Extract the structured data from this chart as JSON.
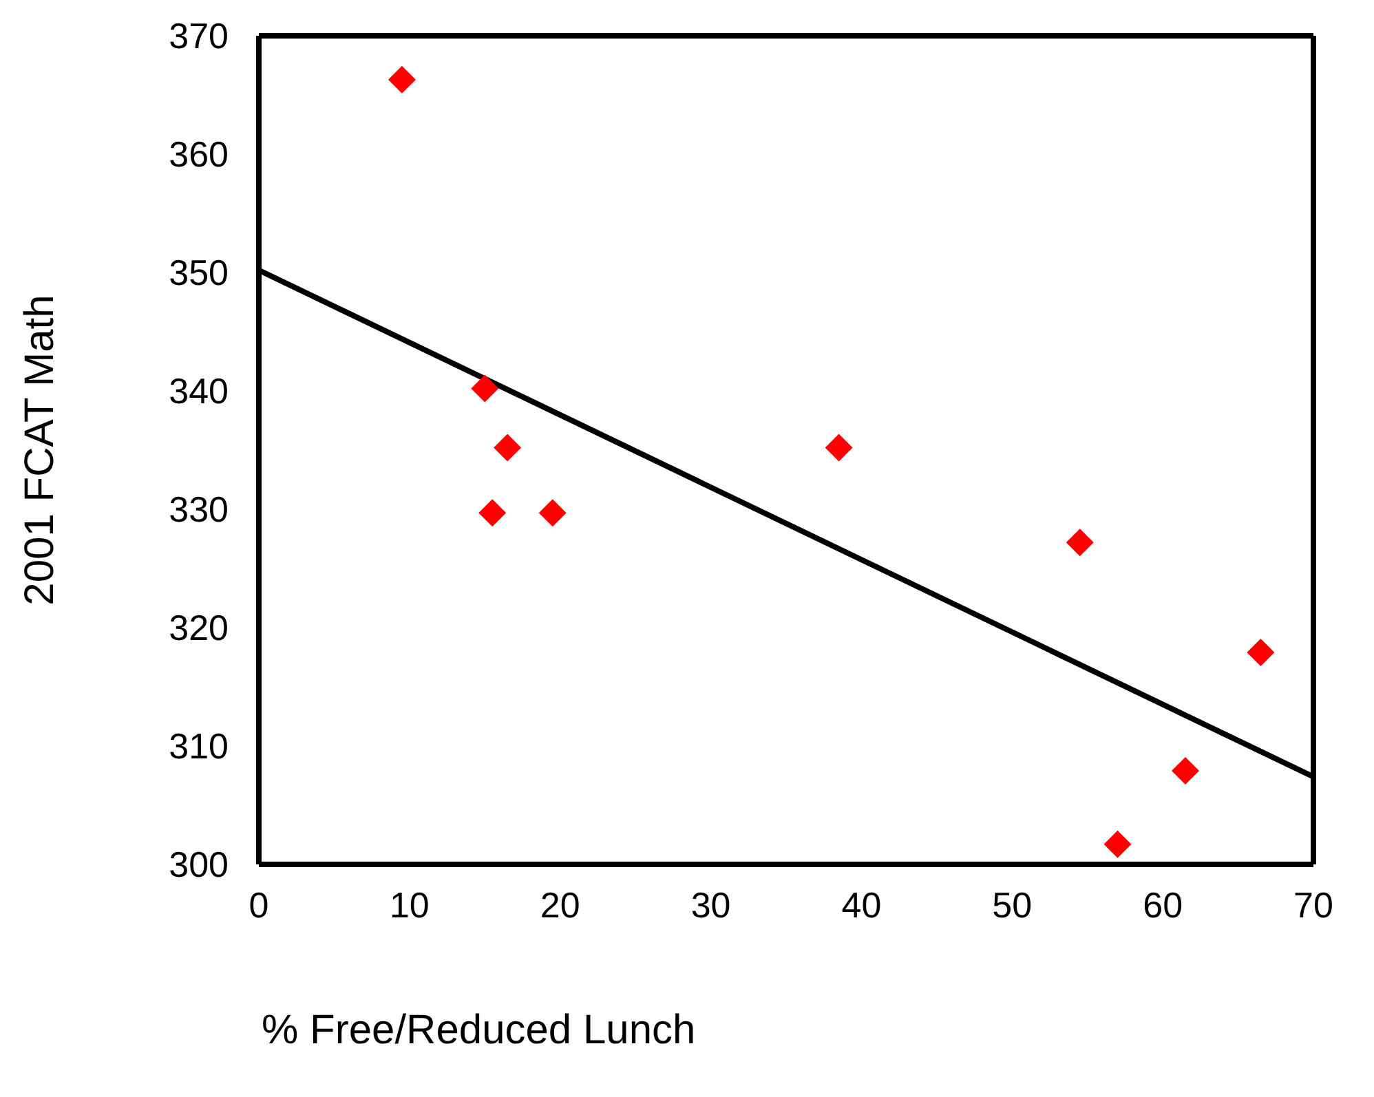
{
  "chart_data": {
    "type": "scatter",
    "xlabel": "% Free/Reduced Lunch",
    "ylabel": "2001 FCAT Math",
    "xlim": [
      0,
      70
    ],
    "xticks": [
      0,
      10,
      20,
      30,
      40,
      50,
      60,
      70
    ],
    "ylim": [
      300,
      370
    ],
    "yticks": [
      300,
      310,
      320,
      330,
      340,
      350,
      360,
      370
    ],
    "legend": false,
    "marker": "diamond",
    "series": [
      {
        "color": "#ff0000",
        "x": [
          9.5,
          15,
          16.5,
          15.5,
          19.5,
          38.5,
          54.5,
          66.5,
          61.5,
          57
        ],
        "values": [
          366.3,
          340.2,
          335.2,
          329.7,
          329.7,
          335.2,
          327.2,
          317.9,
          307.9,
          301.7
        ]
      },
      {
        "type": "line",
        "color": "#000000",
        "line_style": "solid",
        "marker": "none",
        "x": [
          0,
          70
        ],
        "values": [
          350.2,
          307.4
        ]
      }
    ]
  }
}
